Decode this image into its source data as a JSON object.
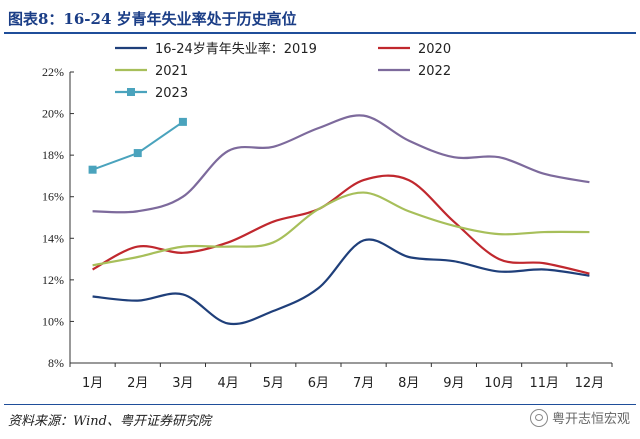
{
  "title": "图表8：16-24 岁青年失业率处于历史高位",
  "source": "资料来源：Wind、粤开证券研究院",
  "watermark": {
    "icon": "wechat-icon",
    "text": "粤开志恒宏观"
  },
  "chart_data": {
    "type": "line",
    "categories": [
      "1月",
      "2月",
      "3月",
      "4月",
      "5月",
      "6月",
      "7月",
      "8月",
      "9月",
      "10月",
      "11月",
      "12月"
    ],
    "ylim": [
      8,
      22
    ],
    "yticks": [
      8,
      10,
      12,
      14,
      16,
      18,
      20,
      22
    ],
    "ytick_labels": [
      "8%",
      "10%",
      "12%",
      "14%",
      "16%",
      "18%",
      "20%",
      "22%"
    ],
    "legend_placement": "top",
    "grid": false,
    "series": [
      {
        "name": "16-24岁青年失业率：2019",
        "color": "#1f3f7a",
        "marker": "none",
        "values": [
          11.2,
          11.0,
          11.3,
          9.9,
          10.5,
          11.6,
          13.9,
          13.1,
          12.9,
          12.4,
          12.5,
          12.2
        ]
      },
      {
        "name": "2020",
        "color": "#c0282e",
        "marker": "none",
        "values": [
          12.5,
          13.6,
          13.3,
          13.8,
          14.8,
          15.4,
          16.8,
          16.8,
          14.8,
          13.0,
          12.8,
          12.3
        ]
      },
      {
        "name": "2021",
        "color": "#a7bf5a",
        "marker": "none",
        "values": [
          12.7,
          13.1,
          13.6,
          13.6,
          13.8,
          15.4,
          16.2,
          15.3,
          14.6,
          14.2,
          14.3,
          14.3
        ]
      },
      {
        "name": "2022",
        "color": "#7d6a9c",
        "marker": "none",
        "values": [
          15.3,
          15.3,
          16.0,
          18.2,
          18.4,
          19.3,
          19.9,
          18.7,
          17.9,
          17.9,
          17.1,
          16.7
        ]
      },
      {
        "name": "2023",
        "color": "#4aa3bd",
        "marker": "square",
        "values": [
          17.3,
          18.1,
          19.6,
          null,
          null,
          null,
          null,
          null,
          null,
          null,
          null,
          null
        ]
      }
    ]
  }
}
